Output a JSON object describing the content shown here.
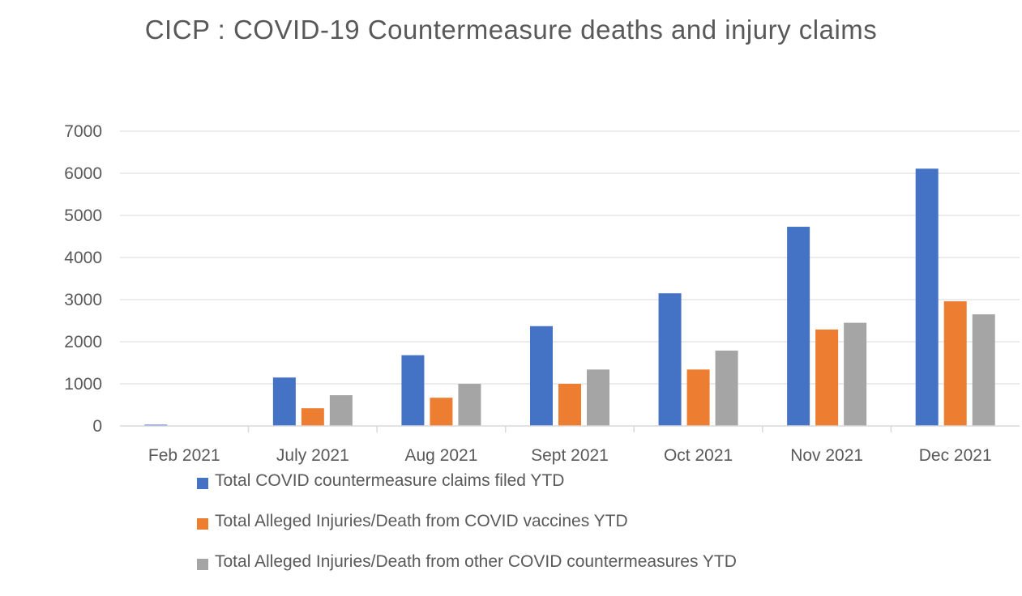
{
  "chart_data": {
    "type": "bar",
    "title": "CICP : COVID-19 Countermeasure deaths and injury claims",
    "xlabel": "",
    "ylabel": "",
    "categories": [
      "Feb 2021",
      "July 2021",
      "Aug 2021",
      "Sept 2021",
      "Oct 2021",
      "Nov 2021",
      "Dec 2021"
    ],
    "ylim": [
      0,
      7000
    ],
    "yticks": [
      0,
      1000,
      2000,
      3000,
      4000,
      5000,
      6000,
      7000
    ],
    "grid": true,
    "legend_position": "bottom",
    "series": [
      {
        "name": "Total COVID countermeasure claims filed YTD",
        "color": "#4472c4",
        "values": [
          30,
          1150,
          1680,
          2370,
          3150,
          4730,
          6110
        ]
      },
      {
        "name": "Total Alleged Injuries/Death from COVID vaccines YTD",
        "color": "#ed7d31",
        "values": [
          0,
          420,
          670,
          1000,
          1340,
          2290,
          2960
        ]
      },
      {
        "name": "Total Alleged Injuries/Death from other COVID countermeasures YTD",
        "color": "#a5a5a5",
        "values": [
          0,
          730,
          1000,
          1340,
          1790,
          2450,
          2650
        ]
      }
    ]
  }
}
